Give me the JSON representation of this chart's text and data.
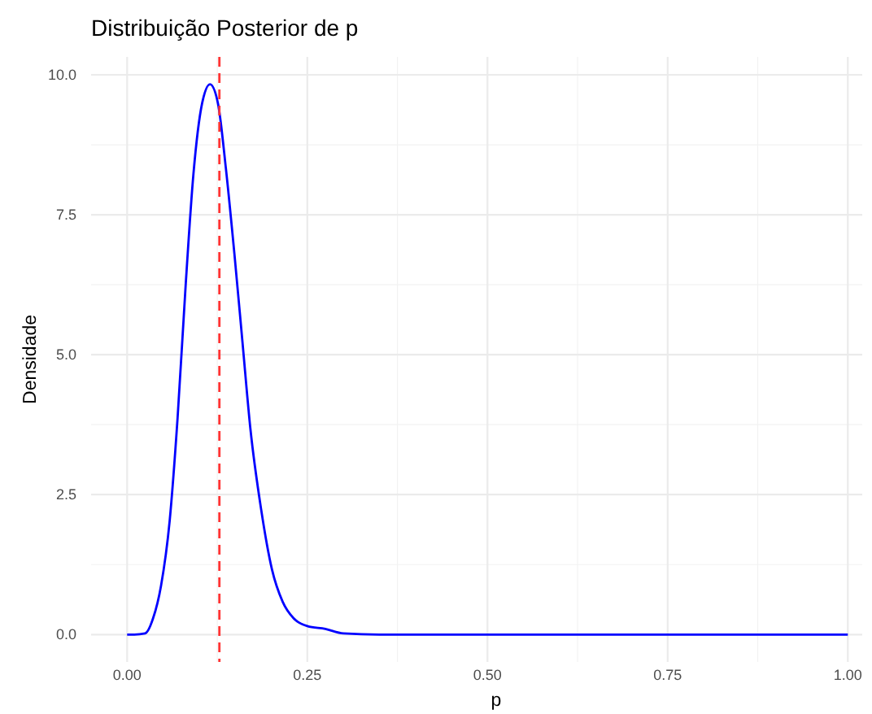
{
  "chart_data": {
    "type": "line",
    "title": "Distribuição Posterior de p",
    "xlabel": "p",
    "ylabel": "Densidade",
    "series": [
      {
        "color": "#0000ff",
        "x": [
          0,
          0.01,
          0.025,
          0.036,
          0.047,
          0.059,
          0.07,
          0.081,
          0.092,
          0.104,
          0.115,
          0.126,
          0.137,
          0.149,
          0.16,
          0.171,
          0.186,
          0.201,
          0.216,
          0.231,
          0.25,
          0.275,
          0.3,
          0.35,
          0.5,
          0.75,
          1
        ],
        "values": [
          0,
          0,
          0.02,
          0.29,
          0.87,
          2.03,
          3.87,
          6.2,
          8.23,
          9.49,
          9.83,
          9.49,
          8.33,
          6.78,
          5.23,
          3.68,
          2.23,
          1.16,
          0.58,
          0.29,
          0.15,
          0.1,
          0.02,
          0,
          0,
          0,
          0
        ]
      }
    ],
    "xlim": [
      -0.05,
      1.02
    ],
    "ylim": [
      -0.49,
      10.32
    ],
    "xticks": [
      {
        "value": 0,
        "label": "0.00"
      },
      {
        "value": 0.25,
        "label": "0.25"
      },
      {
        "value": 0.5,
        "label": "0.50"
      },
      {
        "value": 0.75,
        "label": "0.75"
      },
      {
        "value": 1,
        "label": "1.00"
      }
    ],
    "yticks": [
      {
        "value": 0,
        "label": "0.0"
      },
      {
        "value": 2.5,
        "label": "2.5"
      },
      {
        "value": 5,
        "label": "5.0"
      },
      {
        "value": 7.5,
        "label": "7.5"
      },
      {
        "value": 10,
        "label": "10.0"
      }
    ],
    "ref_lines": [
      {
        "axis": "x",
        "value": 0.128,
        "color": "#ff3333",
        "line_style": "dashed"
      }
    ],
    "grid": true,
    "line_style": "solid"
  }
}
